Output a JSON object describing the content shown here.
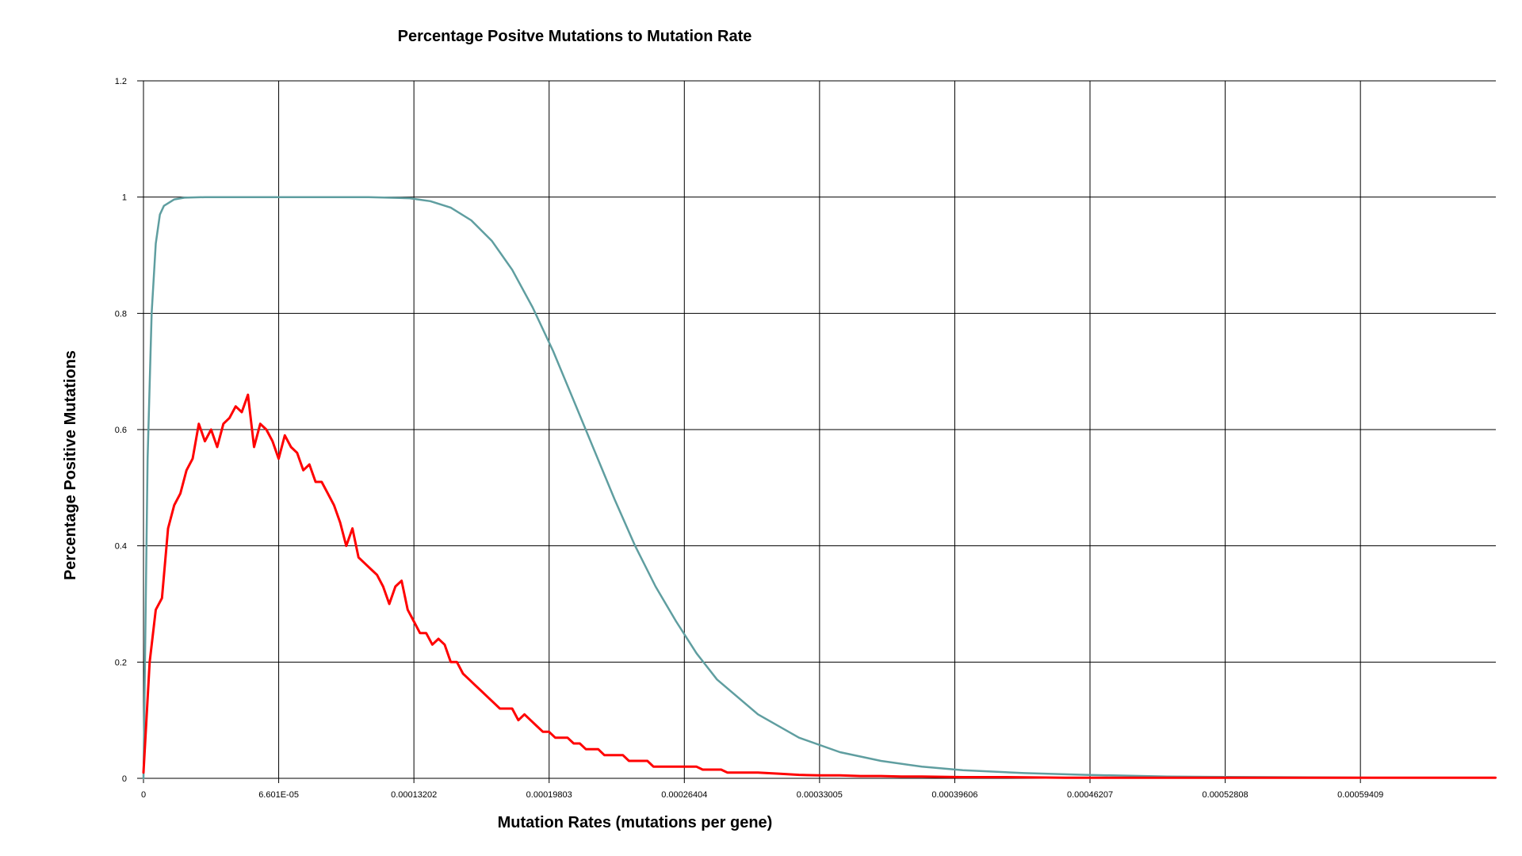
{
  "chart_data": {
    "type": "line",
    "title": "Percentage Positve Mutations to Mutation Rate",
    "xlabel": "Mutation Rates (mutations per gene)",
    "ylabel": "Percentage Positive Mutations",
    "xlim": [
      0,
      0.0006602
    ],
    "ylim": [
      0,
      1.2
    ],
    "x_ticks": [
      0,
      6.601e-05,
      0.00013202,
      0.00019803,
      0.00026404,
      0.00033005,
      0.00039606,
      0.00046207,
      0.00052808,
      0.00059409
    ],
    "x_tick_labels": [
      "0",
      "6.601E-05",
      "0.00013202",
      "0.00019803",
      "0.00026404",
      "0.00033005",
      "0.00039606",
      "0.00046207",
      "0.00052808",
      "0.00059409"
    ],
    "y_ticks": [
      0,
      0.2,
      0.4,
      0.6,
      0.8,
      1,
      1.2
    ],
    "y_tick_labels": [
      "0",
      "0.2",
      "0.4",
      "0.6",
      "0.8",
      "1",
      "1.2"
    ],
    "grid": true,
    "series": [
      {
        "color": "#5f9ea0",
        "x": [
          0,
          2e-06,
          4e-06,
          6e-06,
          8e-06,
          1e-05,
          1.5e-05,
          2e-05,
          3e-05,
          5e-05,
          8e-05,
          0.00011,
          0.00013,
          0.00014,
          0.00015,
          0.00016,
          0.00017,
          0.00018,
          0.00019,
          0.0002,
          0.00021,
          0.00022,
          0.00023,
          0.00024,
          0.00025,
          0.00026,
          0.00027,
          0.00028,
          0.0003,
          0.00032,
          0.00034,
          0.00036,
          0.00038,
          0.0004,
          0.00043,
          0.00046,
          0.0005,
          0.00055,
          0.0006,
          0.00066
        ],
        "y": [
          0,
          0.55,
          0.8,
          0.92,
          0.97,
          0.985,
          0.996,
          0.999,
          1,
          1,
          1,
          1,
          0.998,
          0.993,
          0.982,
          0.96,
          0.925,
          0.875,
          0.81,
          0.735,
          0.65,
          0.565,
          0.48,
          0.4,
          0.33,
          0.27,
          0.215,
          0.17,
          0.11,
          0.07,
          0.045,
          0.03,
          0.02,
          0.014,
          0.009,
          0.006,
          0.003,
          0.002,
          0.001,
          0.001
        ]
      },
      {
        "color": "#ff0000",
        "x": [
          0,
          3e-06,
          6e-06,
          9e-06,
          1.2e-05,
          1.5e-05,
          1.8e-05,
          2.1e-05,
          2.4e-05,
          2.7e-05,
          3e-05,
          3.3e-05,
          3.6e-05,
          3.9e-05,
          4.2e-05,
          4.5e-05,
          4.8e-05,
          5.1e-05,
          5.4e-05,
          5.7e-05,
          6e-05,
          6.3e-05,
          6.6e-05,
          6.9e-05,
          7.2e-05,
          7.5e-05,
          7.8e-05,
          8.1e-05,
          8.4e-05,
          8.7e-05,
          9e-05,
          9.3e-05,
          9.6e-05,
          9.9e-05,
          0.000102,
          0.000105,
          0.000108,
          0.000111,
          0.000114,
          0.000117,
          0.00012,
          0.000123,
          0.000126,
          0.000129,
          0.000132,
          0.000135,
          0.000138,
          0.000141,
          0.000144,
          0.000147,
          0.00015,
          0.000153,
          0.000156,
          0.000159,
          0.000162,
          0.000165,
          0.000168,
          0.000171,
          0.000174,
          0.000177,
          0.00018,
          0.000183,
          0.000186,
          0.000189,
          0.000192,
          0.000195,
          0.000198,
          0.000201,
          0.000204,
          0.000207,
          0.00021,
          0.000213,
          0.000216,
          0.000219,
          0.000222,
          0.000225,
          0.000228,
          0.000231,
          0.000234,
          0.000237,
          0.00024,
          0.000243,
          0.000246,
          0.000249,
          0.000252,
          0.000255,
          0.000258,
          0.000261,
          0.000264,
          0.000267,
          0.00027,
          0.000273,
          0.000276,
          0.000279,
          0.000282,
          0.000285,
          0.000288,
          0.000291,
          0.000294,
          0.000297,
          0.0003,
          0.00031,
          0.00032,
          0.00033,
          0.00034,
          0.00035,
          0.00036,
          0.00037,
          0.00038,
          0.0004,
          0.00042,
          0.00045,
          0.0005,
          0.00055,
          0.0006,
          0.00066
        ],
        "y": [
          0.01,
          0.2,
          0.29,
          0.31,
          0.43,
          0.47,
          0.49,
          0.53,
          0.55,
          0.61,
          0.58,
          0.6,
          0.57,
          0.61,
          0.62,
          0.64,
          0.63,
          0.66,
          0.57,
          0.61,
          0.6,
          0.58,
          0.55,
          0.59,
          0.57,
          0.56,
          0.53,
          0.54,
          0.51,
          0.51,
          0.49,
          0.47,
          0.44,
          0.4,
          0.43,
          0.38,
          0.37,
          0.36,
          0.35,
          0.33,
          0.3,
          0.33,
          0.34,
          0.29,
          0.27,
          0.25,
          0.25,
          0.23,
          0.24,
          0.23,
          0.2,
          0.2,
          0.18,
          0.17,
          0.16,
          0.15,
          0.14,
          0.13,
          0.12,
          0.12,
          0.12,
          0.1,
          0.11,
          0.1,
          0.09,
          0.08,
          0.08,
          0.07,
          0.07,
          0.07,
          0.06,
          0.06,
          0.05,
          0.05,
          0.05,
          0.04,
          0.04,
          0.04,
          0.04,
          0.03,
          0.03,
          0.03,
          0.03,
          0.02,
          0.02,
          0.02,
          0.02,
          0.02,
          0.02,
          0.02,
          0.02,
          0.015,
          0.015,
          0.015,
          0.015,
          0.01,
          0.01,
          0.01,
          0.01,
          0.01,
          0.01,
          0.008,
          0.006,
          0.005,
          0.005,
          0.004,
          0.004,
          0.003,
          0.003,
          0.002,
          0.002,
          0.001,
          0.001,
          0.001,
          0.001,
          0.001
        ]
      }
    ]
  }
}
